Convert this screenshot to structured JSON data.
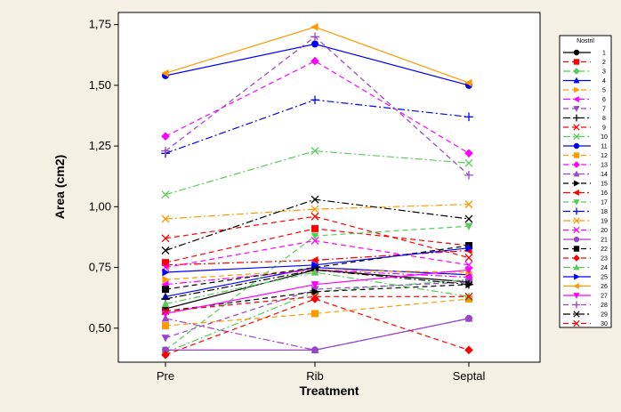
{
  "chart_data": {
    "type": "line",
    "title": "",
    "xlabel": "Treatment",
    "ylabel": "Area (cm2)",
    "categories": [
      "Pre",
      "Rib",
      "Septal"
    ],
    "ylim": [
      0.36,
      1.8
    ],
    "yticks": [
      0.5,
      0.75,
      1.0,
      1.25,
      1.5,
      1.75
    ],
    "ytick_labels": [
      "0,50",
      "0,75",
      "1,00",
      "1,25",
      "1,50",
      "1,75"
    ],
    "legend": {
      "title": "Nostril",
      "placement": "right"
    },
    "series": [
      {
        "name": "1",
        "values": [
          0.58,
          0.74,
          0.69
        ],
        "color": "#000000",
        "marker": "circle",
        "dash": "solid"
      },
      {
        "name": "2",
        "values": [
          0.77,
          0.91,
          0.84
        ],
        "color": "#ff0000",
        "marker": "square",
        "dash": "dash"
      },
      {
        "name": "3",
        "values": [
          0.4,
          0.65,
          0.7
        ],
        "color": "#55cc55",
        "marker": "diamond",
        "dash": "dashdot"
      },
      {
        "name": "4",
        "values": [
          0.63,
          0.75,
          0.72
        ],
        "color": "#0000ff",
        "marker": "triangle-up",
        "dash": "solid"
      },
      {
        "name": "5",
        "values": [
          0.7,
          0.74,
          0.73
        ],
        "color": "#ff9900",
        "marker": "triangle-right",
        "dash": "dash"
      },
      {
        "name": "6",
        "values": [
          0.68,
          0.74,
          0.71
        ],
        "color": "#ff00ff",
        "marker": "triangle-left",
        "dash": "dashdot"
      },
      {
        "name": "7",
        "values": [
          0.46,
          0.66,
          0.69
        ],
        "color": "#9944cc",
        "marker": "triangle-down",
        "dash": "dash"
      },
      {
        "name": "8",
        "values": [
          0.62,
          0.74,
          0.68
        ],
        "color": "#000000",
        "marker": "plus",
        "dash": "dashdot"
      },
      {
        "name": "9",
        "values": [
          0.87,
          0.96,
          0.79
        ],
        "color": "#ff0000",
        "marker": "x",
        "dash": "dash"
      },
      {
        "name": "10",
        "values": [
          1.05,
          1.23,
          1.18
        ],
        "color": "#55cc55",
        "marker": "x",
        "dash": "dashdot"
      },
      {
        "name": "11",
        "values": [
          1.54,
          1.67,
          1.5
        ],
        "color": "#0000ff",
        "marker": "circle",
        "dash": "solid"
      },
      {
        "name": "12",
        "values": [
          0.51,
          0.56,
          0.62
        ],
        "color": "#ff9900",
        "marker": "square",
        "dash": "dash"
      },
      {
        "name": "13",
        "values": [
          1.29,
          1.6,
          1.22
        ],
        "color": "#ff00ff",
        "marker": "diamond",
        "dash": "dash"
      },
      {
        "name": "14",
        "values": [
          0.54,
          0.41,
          0.54
        ],
        "color": "#9944cc",
        "marker": "triangle-up",
        "dash": "dashdot"
      },
      {
        "name": "15",
        "values": [
          0.57,
          0.65,
          0.68
        ],
        "color": "#000000",
        "marker": "triangle-right",
        "dash": "dash"
      },
      {
        "name": "16",
        "values": [
          0.76,
          0.78,
          0.82
        ],
        "color": "#ff0000",
        "marker": "triangle-left",
        "dash": "dashdot"
      },
      {
        "name": "17",
        "values": [
          0.41,
          0.88,
          0.92
        ],
        "color": "#55cc55",
        "marker": "triangle-down",
        "dash": "dash"
      },
      {
        "name": "18",
        "values": [
          1.22,
          1.44,
          1.37
        ],
        "color": "#0000ff",
        "marker": "plus",
        "dash": "dashdot"
      },
      {
        "name": "19",
        "values": [
          0.95,
          0.99,
          1.01
        ],
        "color": "#ff9900",
        "marker": "x",
        "dash": "dashdot"
      },
      {
        "name": "20",
        "values": [
          0.75,
          0.86,
          0.76
        ],
        "color": "#ff00ff",
        "marker": "x",
        "dash": "dash"
      },
      {
        "name": "21",
        "values": [
          0.41,
          0.41,
          0.54
        ],
        "color": "#9944cc",
        "marker": "circle",
        "dash": "solid"
      },
      {
        "name": "22",
        "values": [
          0.66,
          0.75,
          0.84
        ],
        "color": "#000000",
        "marker": "square",
        "dash": "dash"
      },
      {
        "name": "23",
        "values": [
          0.39,
          0.62,
          0.41
        ],
        "color": "#ff0000",
        "marker": "diamond",
        "dash": "dash"
      },
      {
        "name": "24",
        "values": [
          0.6,
          0.73,
          0.63
        ],
        "color": "#55cc55",
        "marker": "triangle-up",
        "dash": "dashdot"
      },
      {
        "name": "25",
        "values": [
          0.73,
          0.76,
          0.83
        ],
        "color": "#0000ff",
        "marker": "triangle-right",
        "dash": "solid"
      },
      {
        "name": "26",
        "values": [
          1.55,
          1.74,
          1.51
        ],
        "color": "#ff9900",
        "marker": "triangle-left",
        "dash": "solid"
      },
      {
        "name": "27",
        "values": [
          0.56,
          0.68,
          0.74
        ],
        "color": "#ff00ff",
        "marker": "triangle-down",
        "dash": "solid"
      },
      {
        "name": "28",
        "values": [
          1.23,
          1.7,
          1.13
        ],
        "color": "#9944cc",
        "marker": "plus",
        "dash": "dash"
      },
      {
        "name": "29",
        "values": [
          0.82,
          1.03,
          0.95
        ],
        "color": "#000000",
        "marker": "x",
        "dash": "dashdot"
      },
      {
        "name": "30",
        "values": [
          0.57,
          0.63,
          0.63
        ],
        "color": "#ff0000",
        "marker": "x",
        "dash": "dash"
      }
    ]
  }
}
